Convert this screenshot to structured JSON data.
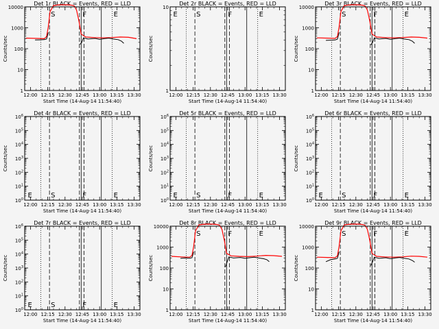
{
  "figure": {
    "background": "#f4f4f4",
    "x_label": "Start Time (14-Aug-14 11:54:40)",
    "y_label": "Counts/sec",
    "x_ticks": [
      "12:00",
      "12:15",
      "12:30",
      "12:45",
      "13:00",
      "13:15",
      "13:30"
    ],
    "x_tick_minutes": [
      0,
      15,
      30,
      45,
      60,
      75,
      90
    ],
    "x_range_minutes": [
      -5,
      95
    ],
    "colors": {
      "events": "#000000",
      "lld": "#ff0000"
    }
  },
  "chart_data": [
    {
      "type": "line",
      "title": "Det 1r BLACK = Events, RED = LLD",
      "y_scale": "log",
      "ylim": [
        1,
        10000
      ],
      "y_tick_labels": [
        "1",
        "10",
        "100",
        "1000",
        "10000"
      ],
      "y_tick_values": [
        1,
        10,
        100,
        1000,
        10000
      ],
      "markers": [
        {
          "label": "S",
          "x": 16.5,
          "style": "dashed"
        },
        {
          "label": "F",
          "x": 44,
          "style": "solid"
        },
        {
          "label": "E",
          "x": 71,
          "style": "dotted"
        }
      ],
      "reference_lines": [
        {
          "x": 9,
          "style": "dotted"
        },
        {
          "x": 42.5,
          "style": "dashed"
        },
        {
          "x": 46.5,
          "style": "dashed"
        },
        {
          "x": 61.5,
          "style": "solid"
        }
      ],
      "series": [
        {
          "color": "#ff0000",
          "x": [
            -4,
            5,
            12,
            14,
            15.5,
            17,
            20,
            25,
            32,
            36,
            38,
            40,
            42,
            44,
            48,
            55,
            62,
            70,
            78,
            85,
            92
          ],
          "y": [
            320,
            310,
            300,
            380,
            1100,
            6000,
            11500,
            12500,
            12500,
            12000,
            11000,
            7000,
            2200,
            500,
            360,
            340,
            330,
            340,
            360,
            350,
            300
          ]
        },
        {
          "color": "#000000",
          "x": [
            4,
            8,
            12,
            14,
            15.5
          ],
          "y": [
            260,
            265,
            270,
            290,
            600
          ]
        },
        {
          "color": "#000000",
          "x": [
            43,
            44.5,
            46,
            50,
            56,
            60,
            64,
            68,
            72,
            76,
            79,
            81
          ],
          "y": [
            160,
            200,
            330,
            290,
            310,
            280,
            300,
            320,
            290,
            270,
            230,
            180
          ]
        }
      ]
    },
    {
      "type": "line",
      "title": "Det 2r BLACK = Events, RED = LLD",
      "y_scale": "log",
      "ylim": [
        1,
        10
      ],
      "y_tick_labels": [
        "1",
        "10"
      ],
      "y_tick_values": [
        1,
        10
      ],
      "markers": [
        {
          "label": "E",
          "x": -3.5,
          "style": "none"
        },
        {
          "label": "S",
          "x": 16.5,
          "style": "dashed"
        },
        {
          "label": "F",
          "x": 44,
          "style": "solid"
        },
        {
          "label": "E",
          "x": 71,
          "style": "dotted"
        }
      ],
      "reference_lines": [
        {
          "x": 9,
          "style": "dotted"
        },
        {
          "x": 42.5,
          "style": "dashed"
        },
        {
          "x": 46.5,
          "style": "dashed"
        },
        {
          "x": 61.5,
          "style": "solid"
        }
      ],
      "series": []
    },
    {
      "type": "line",
      "title": "Det 3r BLACK = Events, RED = LLD",
      "y_scale": "log",
      "ylim": [
        1,
        10000
      ],
      "y_tick_labels": [
        "1",
        "10",
        "100",
        "1000",
        "10000"
      ],
      "y_tick_values": [
        1,
        10,
        100,
        1000,
        10000
      ],
      "markers": [
        {
          "label": "S",
          "x": 16.5,
          "style": "dashed"
        },
        {
          "label": "F",
          "x": 44,
          "style": "solid"
        },
        {
          "label": "E",
          "x": 71,
          "style": "dotted"
        }
      ],
      "reference_lines": [
        {
          "x": 9,
          "style": "dotted"
        },
        {
          "x": 42.5,
          "style": "dashed"
        },
        {
          "x": 46.5,
          "style": "dashed"
        },
        {
          "x": 61.5,
          "style": "solid"
        }
      ],
      "series": [
        {
          "color": "#ff0000",
          "x": [
            -4,
            5,
            12,
            14,
            15.5,
            17,
            20,
            25,
            32,
            36,
            38,
            40,
            42,
            44,
            48,
            55,
            62,
            70,
            78,
            85,
            92
          ],
          "y": [
            330,
            320,
            310,
            380,
            1100,
            6000,
            11500,
            12500,
            12500,
            12000,
            11000,
            7000,
            2200,
            500,
            360,
            340,
            330,
            340,
            360,
            350,
            320
          ]
        },
        {
          "color": "#000000",
          "x": [
            4,
            8,
            12,
            14,
            15.5
          ],
          "y": [
            250,
            255,
            260,
            285,
            600
          ]
        },
        {
          "color": "#000000",
          "x": [
            43,
            44.5,
            46,
            50,
            56,
            60,
            64,
            68,
            72,
            76,
            79,
            81
          ],
          "y": [
            150,
            200,
            330,
            290,
            310,
            280,
            300,
            320,
            290,
            270,
            230,
            180
          ]
        }
      ]
    },
    {
      "type": "line",
      "title": "Det 4r BLACK = Events, RED = LLD",
      "y_scale": "log",
      "ylim": [
        1,
        1000000
      ],
      "y_tick_labels": [
        "10^0",
        "10^1",
        "10^2",
        "10^3",
        "10^4",
        "10^5",
        "10^6"
      ],
      "y_tick_values": [
        1,
        10,
        100,
        1000,
        10000,
        100000,
        1000000
      ],
      "markers": [
        {
          "label": "E",
          "x": -3.5,
          "style": "none"
        },
        {
          "label": "S",
          "x": 16.5,
          "style": "dashed"
        },
        {
          "label": "F",
          "x": 44,
          "style": "solid"
        },
        {
          "label": "E",
          "x": 71,
          "style": "dotted"
        }
      ],
      "reference_lines": [
        {
          "x": 9,
          "style": "dotted"
        },
        {
          "x": 42.5,
          "style": "dashed"
        },
        {
          "x": 46.5,
          "style": "dashed"
        },
        {
          "x": 61.5,
          "style": "solid"
        }
      ],
      "series": []
    },
    {
      "type": "line",
      "title": "Det 5r BLACK = Events, RED = LLD",
      "y_scale": "log",
      "ylim": [
        1,
        1000000
      ],
      "y_tick_labels": [
        "10^0",
        "10^1",
        "10^2",
        "10^3",
        "10^4",
        "10^5",
        "10^6"
      ],
      "y_tick_values": [
        1,
        10,
        100,
        1000,
        10000,
        100000,
        1000000
      ],
      "markers": [
        {
          "label": "E",
          "x": -3.5,
          "style": "none"
        },
        {
          "label": "S",
          "x": 16.5,
          "style": "dashed"
        },
        {
          "label": "F",
          "x": 44,
          "style": "solid"
        },
        {
          "label": "E",
          "x": 71,
          "style": "dotted"
        }
      ],
      "reference_lines": [
        {
          "x": 9,
          "style": "dotted"
        },
        {
          "x": 42.5,
          "style": "dashed"
        },
        {
          "x": 46.5,
          "style": "dashed"
        },
        {
          "x": 61.5,
          "style": "solid"
        }
      ],
      "series": []
    },
    {
      "type": "line",
      "title": "Det 6r BLACK = Events, RED = LLD",
      "y_scale": "log",
      "ylim": [
        1,
        1000000
      ],
      "y_tick_labels": [
        "10^0",
        "10^1",
        "10^2",
        "10^3",
        "10^4",
        "10^5",
        "10^6"
      ],
      "y_tick_values": [
        1,
        10,
        100,
        1000,
        10000,
        100000,
        1000000
      ],
      "markers": [
        {
          "label": "E",
          "x": -3.5,
          "style": "none"
        },
        {
          "label": "S",
          "x": 16.5,
          "style": "dashed"
        },
        {
          "label": "F",
          "x": 44,
          "style": "solid"
        },
        {
          "label": "E",
          "x": 71,
          "style": "dotted"
        }
      ],
      "reference_lines": [
        {
          "x": 9,
          "style": "dotted"
        },
        {
          "x": 42.5,
          "style": "dashed"
        },
        {
          "x": 46.5,
          "style": "dashed"
        },
        {
          "x": 61.5,
          "style": "solid"
        }
      ],
      "series": []
    },
    {
      "type": "line",
      "title": "Det 7r BLACK = Events, RED = LLD",
      "y_scale": "log",
      "ylim": [
        1,
        1000000
      ],
      "y_tick_labels": [
        "10^0",
        "10^1",
        "10^2",
        "10^3",
        "10^4",
        "10^5",
        "10^6"
      ],
      "y_tick_values": [
        1,
        10,
        100,
        1000,
        10000,
        100000,
        1000000
      ],
      "markers": [
        {
          "label": "E",
          "x": -3.5,
          "style": "none"
        },
        {
          "label": "S",
          "x": 16.5,
          "style": "dashed"
        },
        {
          "label": "F",
          "x": 44,
          "style": "solid"
        },
        {
          "label": "E",
          "x": 71,
          "style": "dotted"
        }
      ],
      "reference_lines": [
        {
          "x": 9,
          "style": "dotted"
        },
        {
          "x": 42.5,
          "style": "dashed"
        },
        {
          "x": 46.5,
          "style": "dashed"
        },
        {
          "x": 61.5,
          "style": "solid"
        }
      ],
      "series": []
    },
    {
      "type": "line",
      "title": "Det 8r BLACK = Events, RED = LLD",
      "y_scale": "log",
      "ylim": [
        1,
        10000
      ],
      "y_tick_labels": [
        "1",
        "10",
        "100",
        "1000",
        "10000"
      ],
      "y_tick_values": [
        1,
        10,
        100,
        1000,
        10000
      ],
      "markers": [
        {
          "label": "S",
          "x": 16.5,
          "style": "dashed"
        },
        {
          "label": "F",
          "x": 44,
          "style": "solid"
        },
        {
          "label": "E",
          "x": 71,
          "style": "dotted"
        }
      ],
      "reference_lines": [
        {
          "x": 9,
          "style": "dotted"
        },
        {
          "x": 42.5,
          "style": "dashed"
        },
        {
          "x": 46.5,
          "style": "dashed"
        },
        {
          "x": 61.5,
          "style": "solid"
        }
      ],
      "series": [
        {
          "color": "#ff0000",
          "x": [
            -4,
            5,
            12,
            14,
            15.5,
            17,
            20,
            25,
            32,
            36,
            38,
            40,
            42,
            44,
            48,
            55,
            62,
            70,
            78,
            85,
            92
          ],
          "y": [
            360,
            340,
            330,
            400,
            1100,
            6000,
            11500,
            12500,
            12500,
            12000,
            11000,
            7000,
            2200,
            500,
            380,
            360,
            350,
            370,
            400,
            390,
            360
          ]
        },
        {
          "color": "#000000",
          "x": [
            4,
            8,
            12,
            14,
            15.5
          ],
          "y": [
            290,
            300,
            295,
            310,
            600
          ]
        },
        {
          "color": "#000000",
          "x": [
            43,
            44.5,
            46,
            50,
            56,
            60,
            64,
            68,
            72,
            76,
            79,
            81
          ],
          "y": [
            110,
            200,
            340,
            300,
            320,
            290,
            310,
            330,
            300,
            280,
            250,
            200
          ]
        }
      ]
    },
    {
      "type": "line",
      "title": "Det 9r BLACK = Events, RED = LLD",
      "y_scale": "log",
      "ylim": [
        1,
        10000
      ],
      "y_tick_labels": [
        "1",
        "10",
        "100",
        "1000",
        "10000"
      ],
      "y_tick_values": [
        1,
        10,
        100,
        1000,
        10000
      ],
      "markers": [
        {
          "label": "S",
          "x": 16.5,
          "style": "dashed"
        },
        {
          "label": "F",
          "x": 44,
          "style": "solid"
        },
        {
          "label": "E",
          "x": 71,
          "style": "dotted"
        }
      ],
      "reference_lines": [
        {
          "x": 9,
          "style": "dotted"
        },
        {
          "x": 42.5,
          "style": "dashed"
        },
        {
          "x": 46.5,
          "style": "dashed"
        },
        {
          "x": 61.5,
          "style": "solid"
        }
      ],
      "series": [
        {
          "color": "#ff0000",
          "x": [
            -4,
            5,
            12,
            14,
            15.5,
            17,
            20,
            25,
            32,
            36,
            38,
            40,
            42,
            44,
            48,
            55,
            62,
            70,
            78,
            85,
            92
          ],
          "y": [
            330,
            320,
            310,
            380,
            1100,
            6000,
            11500,
            12500,
            12500,
            12000,
            11000,
            7000,
            2200,
            500,
            360,
            340,
            330,
            340,
            370,
            360,
            330
          ]
        },
        {
          "color": "#000000",
          "x": [
            4,
            8,
            12,
            14,
            15.5
          ],
          "y": [
            200,
            250,
            270,
            290,
            600
          ]
        },
        {
          "color": "#000000",
          "x": [
            43,
            44.5,
            46,
            50,
            56,
            60,
            64,
            68,
            72,
            76,
            79,
            81
          ],
          "y": [
            130,
            200,
            330,
            290,
            310,
            280,
            300,
            320,
            290,
            270,
            230,
            190
          ]
        }
      ]
    }
  ]
}
